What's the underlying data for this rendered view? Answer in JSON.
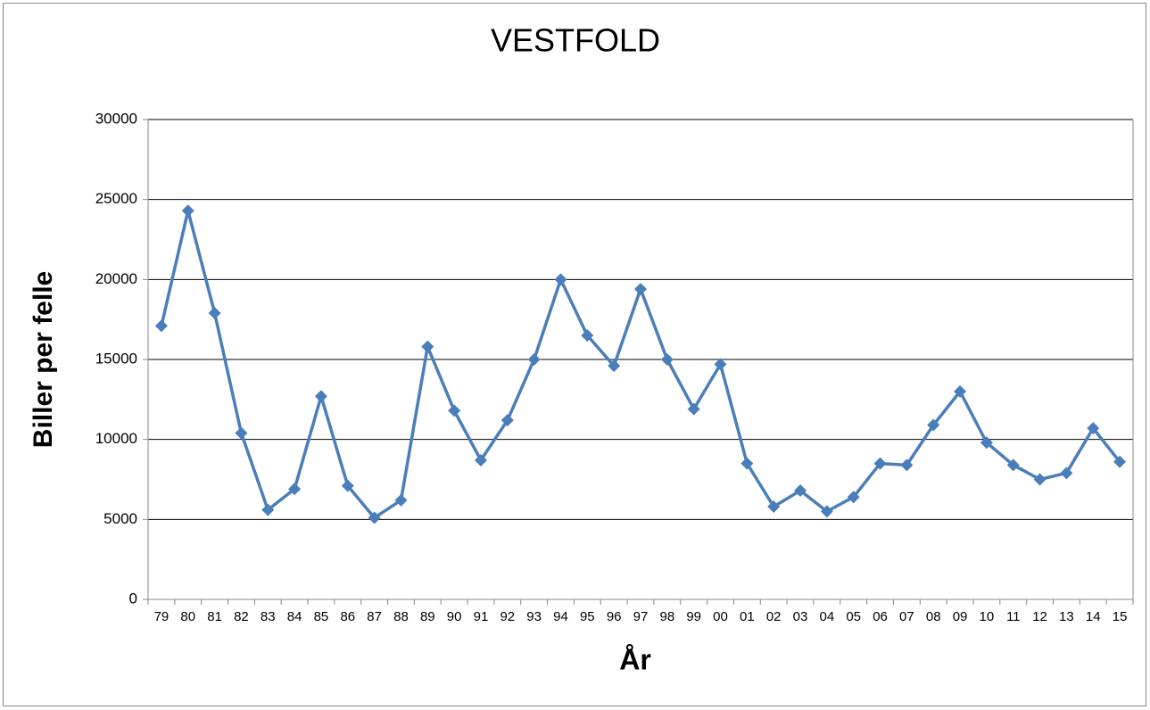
{
  "chart_data": {
    "type": "line",
    "title": "VESTFOLD",
    "x_label": "År",
    "y_label": "Biller per felle",
    "categories": [
      "79",
      "80",
      "81",
      "82",
      "83",
      "84",
      "85",
      "86",
      "87",
      "88",
      "89",
      "90",
      "91",
      "92",
      "93",
      "94",
      "95",
      "96",
      "97",
      "98",
      "99",
      "00",
      "01",
      "02",
      "03",
      "04",
      "05",
      "06",
      "07",
      "08",
      "09",
      "10",
      "11",
      "12",
      "13",
      "14",
      "15"
    ],
    "series": [
      {
        "name": "Vestfold",
        "color": "#4a7ebb",
        "values": [
          17100,
          24300,
          17900,
          10400,
          5600,
          6900,
          12700,
          7100,
          5100,
          6200,
          15800,
          11800,
          8700,
          11200,
          15000,
          20000,
          16500,
          14600,
          19400,
          15000,
          11900,
          14700,
          8500,
          5800,
          6800,
          5500,
          6400,
          8500,
          8400,
          10900,
          13000,
          9800,
          8400,
          7500,
          7900,
          10700,
          8600
        ]
      }
    ],
    "ylim": [
      0,
      30000
    ],
    "yticks": [
      0,
      5000,
      10000,
      15000,
      20000,
      25000,
      30000
    ],
    "grid": true
  }
}
